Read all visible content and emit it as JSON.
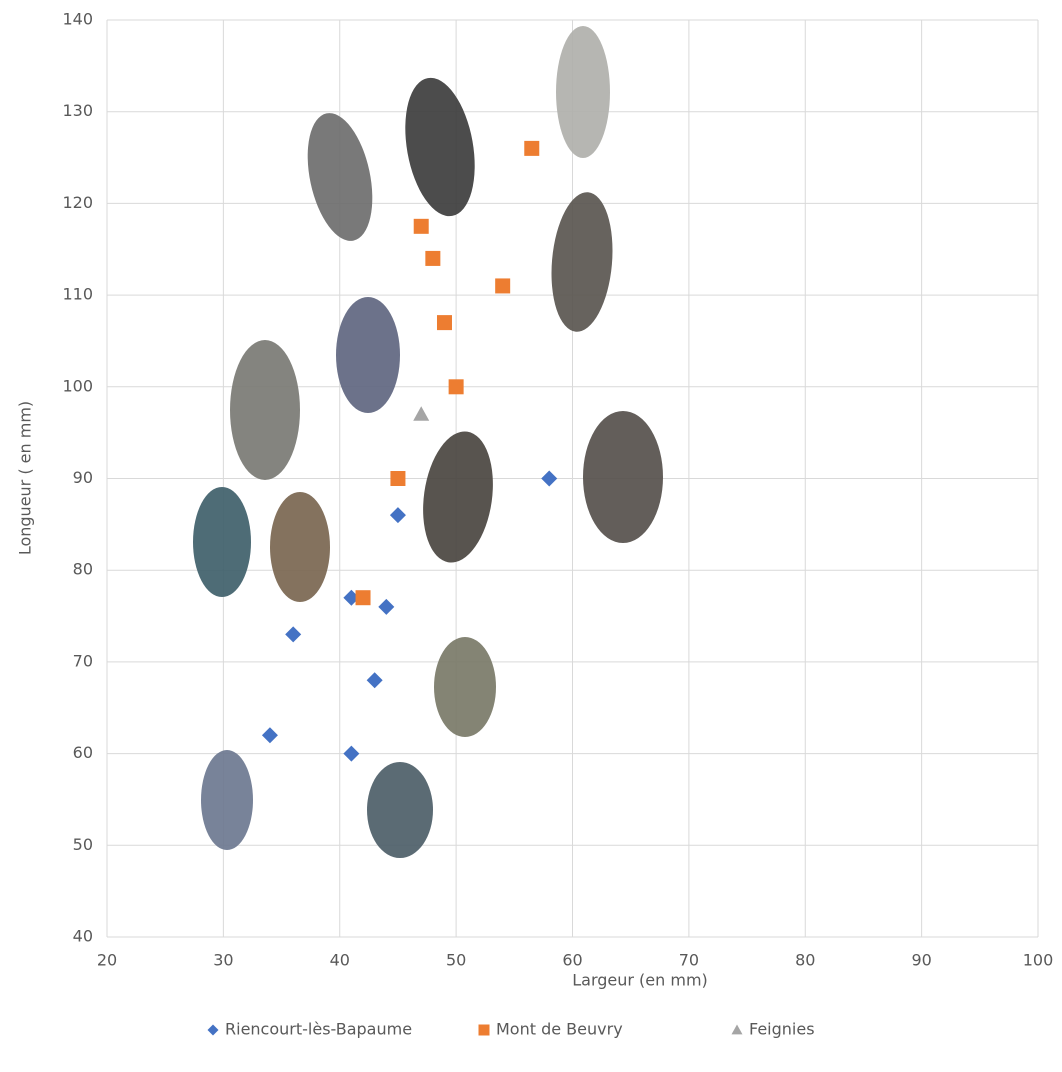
{
  "chart_data": {
    "type": "scatter",
    "x_label": "Largeur (en mm)",
    "y_label": "Longueur ( en mm)",
    "xlim": [
      20,
      100
    ],
    "xticks": [
      20,
      30,
      40,
      50,
      60,
      70,
      80,
      90,
      100
    ],
    "ylim": [
      40,
      140
    ],
    "yticks": [
      40,
      50,
      60,
      70,
      80,
      90,
      100,
      110,
      120,
      130,
      140
    ],
    "grid": true,
    "legend": "bottom",
    "series": [
      {
        "name": "Riencourt-lès-Bapaume",
        "color": "#4472c4",
        "marker": "diamond",
        "x": [
          58,
          45,
          41,
          44,
          36,
          43,
          34,
          41
        ],
        "values": [
          90,
          86,
          77,
          76,
          73,
          68,
          62,
          60
        ]
      },
      {
        "name": "Mont de Beuvry",
        "color": "#ed7d31",
        "marker": "square",
        "x": [
          56.5,
          47,
          48,
          54,
          49,
          50,
          45,
          42
        ],
        "values": [
          126,
          117.5,
          114,
          111,
          107,
          100,
          90,
          77
        ]
      },
      {
        "name": "Feignies",
        "color": "#a5a5a5",
        "marker": "triangle",
        "x": [
          47
        ],
        "values": [
          97
        ]
      }
    ]
  }
}
